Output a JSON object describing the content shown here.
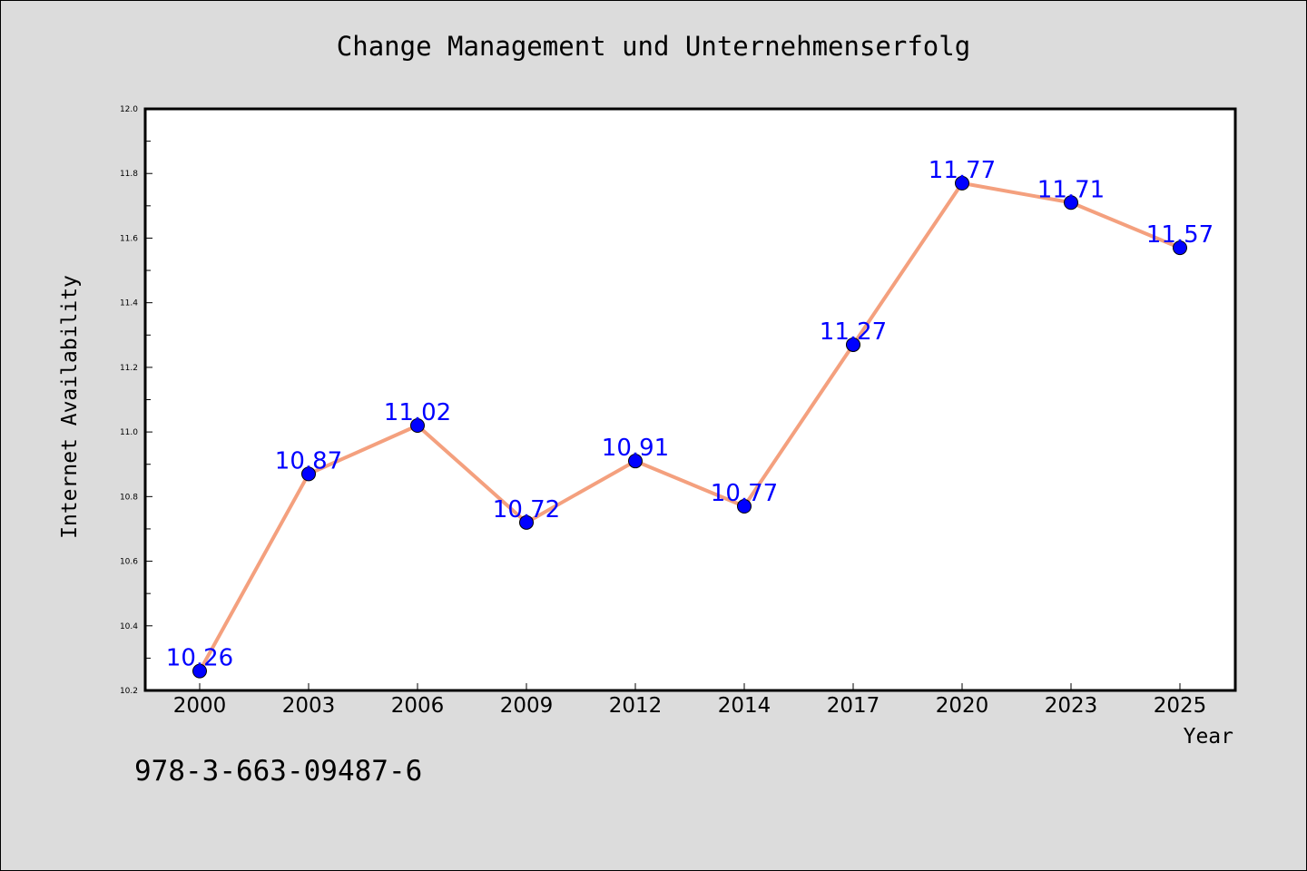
{
  "chart_data": {
    "type": "line",
    "title": "Change Management und Unternehmenserfolg",
    "xlabel": "Year",
    "ylabel": "Internet Availability",
    "categories": [
      "2000",
      "2003",
      "2006",
      "2009",
      "2012",
      "2014",
      "2017",
      "2020",
      "2023",
      "2025"
    ],
    "values": [
      10.26,
      10.87,
      11.02,
      10.72,
      10.91,
      10.77,
      11.27,
      11.77,
      11.71,
      11.57
    ],
    "data_labels": [
      "10.26",
      "10.87",
      "11.02",
      "10.72",
      "10.91",
      "10.77",
      "11.27",
      "11.77",
      "11.71",
      "11.57"
    ],
    "ylim": [
      10.2,
      12.0
    ],
    "yticks": [
      "10.2",
      "10.4",
      "10.6",
      "10.8",
      "11.0",
      "11.2",
      "11.4",
      "11.6",
      "11.8",
      "12.0"
    ],
    "grid": false,
    "legend": "none",
    "colors": {
      "line": "#f4a07e",
      "marker": "#0000ff",
      "label": "#0000ff",
      "plot_bg": "#ffffff",
      "page_bg": "#dcdcdc"
    }
  },
  "footer_text": "978-3-663-09487-6"
}
